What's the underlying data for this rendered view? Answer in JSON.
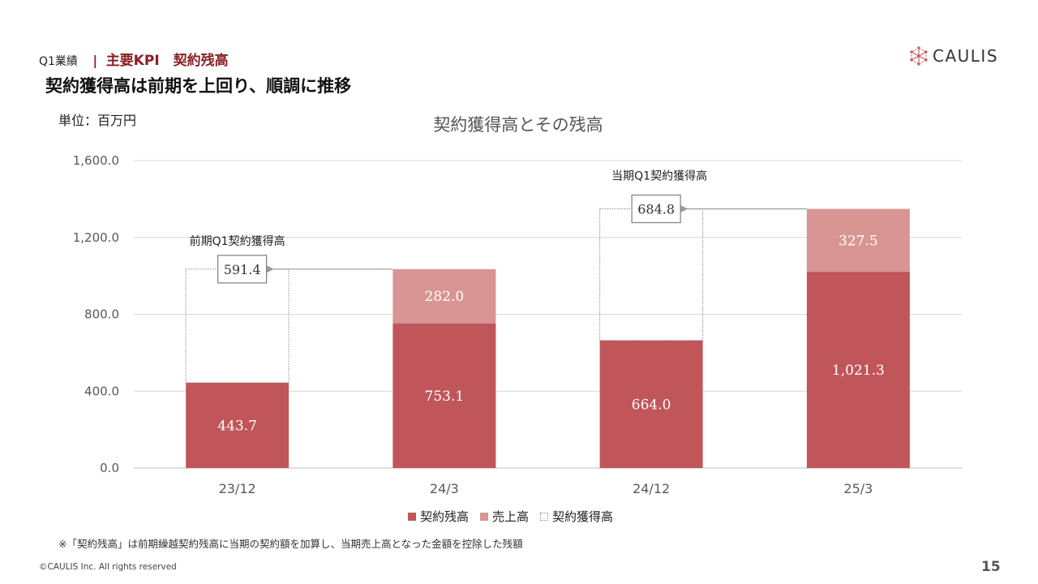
{
  "header": {
    "section": "Q1業績",
    "separator": "|",
    "kpi": "主要KPI　契約残高",
    "headline": "契約獲得高は前期を上回り、順調に推移"
  },
  "unit_label": "単位：百万円",
  "brand": {
    "name": "CAULIS",
    "logo_icon": "network-hexagon-icon",
    "accent": "#c0565a"
  },
  "chart_data": {
    "type": "bar",
    "stacked": true,
    "title": "契約獲得高とその残高",
    "categories": [
      "23/12",
      "24/3",
      "24/12",
      "25/3"
    ],
    "y_ticks": [
      "0.0",
      "400.0",
      "800.0",
      "1,200.0",
      "1,600.0"
    ],
    "ylim": [
      0,
      1600
    ],
    "grid": true,
    "legend_position": "bottom",
    "series": [
      {
        "name": "契約残高",
        "color": "#c0565a",
        "values": [
          443.7,
          753.1,
          664.0,
          1021.3
        ],
        "labels": [
          "443.7",
          "753.1",
          "664.0",
          "1,021.3"
        ]
      },
      {
        "name": "売上高",
        "color": "#d99593",
        "values": [
          0,
          282.0,
          0,
          327.5
        ],
        "labels": [
          "",
          "282.0",
          "",
          "327.5"
        ]
      },
      {
        "name": "契約獲得高",
        "color": "#ffffff",
        "values": [
          591.4,
          0,
          684.8,
          0
        ],
        "labels": [
          "591.4",
          "",
          "684.8",
          ""
        ]
      }
    ],
    "annotations": [
      {
        "text": "前期Q1契約獲得高",
        "category": "23/12"
      },
      {
        "text": "当期Q1契約獲得高",
        "category": "24/12"
      }
    ]
  },
  "footnote": "※「契約残高」は前期繰越契約残高に当期の契約額を加算し、当期売上高となった金額を控除した残額",
  "copyright": "©CAULIS Inc. All rights reserved",
  "page_number": "15"
}
